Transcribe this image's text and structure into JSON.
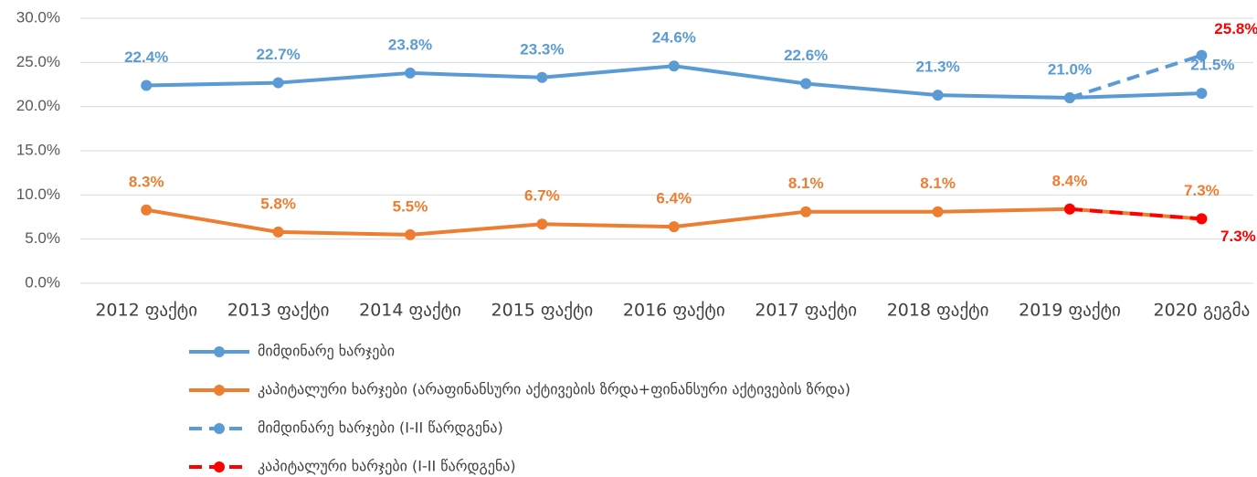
{
  "chart_data": {
    "type": "line",
    "categories": [
      "2012 ფაქტი",
      "2013 ფაქტი",
      "2014 ფაქტი",
      "2015 ფაქტი",
      "2016 ფაქტი",
      "2017 ფაქტი",
      "2018 ფაქტი",
      "2019 ფაქტი",
      "2020 გეგმა"
    ],
    "series": [
      {
        "name": "მიმდინარე ხარჯები",
        "color": "#5B9BD5",
        "dashed": false,
        "values": [
          22.4,
          22.7,
          23.8,
          23.3,
          24.6,
          22.6,
          21.3,
          21.0,
          21.5
        ],
        "value_labels": [
          "22.4%",
          "22.7%",
          "23.8%",
          "23.3%",
          "24.6%",
          "22.6%",
          "21.3%",
          "21.0%",
          "21.5%"
        ]
      },
      {
        "name": "კაპიტალური ხარჯები (არაფინანსური აქტივების ზრდა+ფინანსური აქტივების ზრდა)",
        "color": "#ED7D31",
        "dashed": false,
        "values": [
          8.3,
          5.8,
          5.5,
          6.7,
          6.4,
          8.1,
          8.1,
          8.4,
          7.3
        ],
        "value_labels": [
          "8.3%",
          "5.8%",
          "5.5%",
          "6.7%",
          "6.4%",
          "8.1%",
          "8.1%",
          "8.4%",
          "7.3%"
        ]
      },
      {
        "name": "მიმდინარე ხარჯები (I-II წარდგენა)",
        "color": "#5B9BD5",
        "dashed": true,
        "label_color": "#FF0000",
        "values": [
          null,
          null,
          null,
          null,
          null,
          null,
          null,
          21.0,
          25.8
        ],
        "value_labels": [
          null,
          null,
          null,
          null,
          null,
          null,
          null,
          null,
          "25.8%"
        ]
      },
      {
        "name": "კაპიტალური ხარჯები (I-II წარდგენა)",
        "color": "#FF0000",
        "dashed": true,
        "label_color": "#FF0000",
        "values": [
          null,
          null,
          null,
          null,
          null,
          null,
          null,
          8.4,
          7.3
        ],
        "value_labels": [
          null,
          null,
          null,
          null,
          null,
          null,
          null,
          null,
          "7.3%"
        ]
      }
    ],
    "ylim": [
      0,
      30
    ],
    "yticks": [
      {
        "value": 0,
        "label": "0.0%"
      },
      {
        "value": 5,
        "label": "5.0%"
      },
      {
        "value": 10,
        "label": "10.0%"
      },
      {
        "value": 15,
        "label": "15.0%"
      },
      {
        "value": 20,
        "label": "20.0%"
      },
      {
        "value": 25,
        "label": "25.0%"
      },
      {
        "value": 30,
        "label": "30.0%"
      }
    ],
    "grid": true,
    "legend": "bottom"
  }
}
